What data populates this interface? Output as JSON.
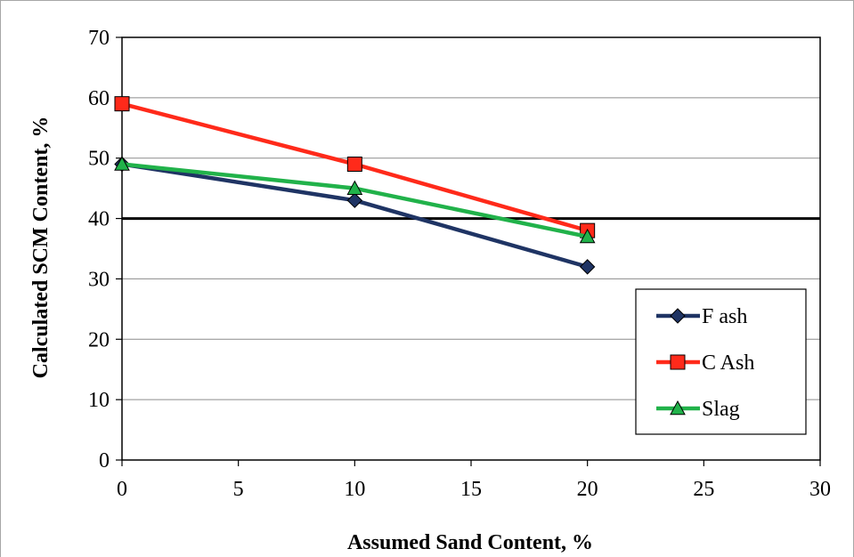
{
  "chart_data": {
    "type": "line",
    "title": "",
    "xlabel": "Assumed Sand Content, %",
    "ylabel": "Calculated SCM Content, %",
    "xlim": [
      0,
      30
    ],
    "ylim": [
      0,
      70
    ],
    "x_ticks": [
      "0",
      "5",
      "10",
      "15",
      "20",
      "25",
      "30"
    ],
    "y_ticks": [
      "0",
      "10",
      "20",
      "30",
      "40",
      "50",
      "60",
      "70"
    ],
    "grid": "horizontal",
    "legend_position": "bottom-right",
    "reference_line": {
      "y": 40,
      "color": "#000000"
    },
    "series": [
      {
        "name": "F ash",
        "color": "#1f3464",
        "marker": "diamond",
        "x": [
          0,
          10,
          20
        ],
        "y": [
          49,
          43,
          32
        ]
      },
      {
        "name": "C Ash",
        "color": "#ff2a1a",
        "marker": "square",
        "x": [
          0,
          10,
          20
        ],
        "y": [
          59,
          49,
          38
        ]
      },
      {
        "name": "Slag",
        "color": "#21b24a",
        "marker": "triangle",
        "x": [
          0,
          10,
          20
        ],
        "y": [
          49,
          45,
          37
        ]
      }
    ]
  }
}
